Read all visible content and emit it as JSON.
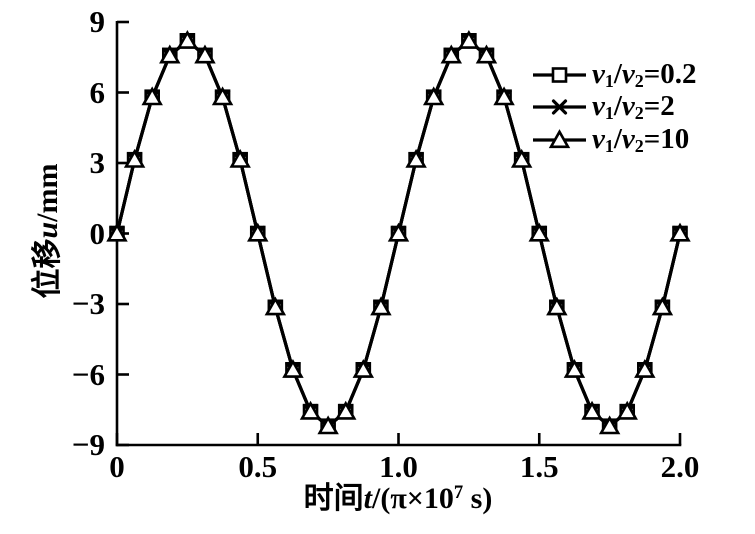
{
  "figure": {
    "background": "#ffffff",
    "ink": "#000000"
  },
  "axes": {
    "x": {
      "label_parts": [
        {
          "text": "时间"
        },
        {
          "text": "t",
          "italic": true
        },
        {
          "text": "/(π×10"
        },
        {
          "text": "7",
          "sup": true
        },
        {
          "text": " s)"
        }
      ],
      "tick_labels": [
        "0",
        "0.5",
        "1.0",
        "1.5",
        "2.0"
      ],
      "tick_values": [
        0,
        0.5,
        1.0,
        1.5,
        2.0
      ],
      "range": [
        0,
        2
      ]
    },
    "y": {
      "label_parts": [
        {
          "text": "位移"
        },
        {
          "text": "u",
          "italic": true
        },
        {
          "text": "/mm"
        }
      ],
      "tick_labels": [
        "9",
        "6",
        "3",
        "0",
        "−3",
        "−6",
        "−9"
      ],
      "tick_values": [
        9,
        6,
        3,
        0,
        -3,
        -6,
        -9
      ],
      "range": [
        -9,
        9
      ]
    }
  },
  "legend": {
    "position": "upper-right",
    "entries": [
      {
        "marker": "square",
        "label_parts": [
          {
            "text": "v",
            "italic": true
          },
          {
            "text": "1",
            "sub": true
          },
          {
            "text": "/"
          },
          {
            "text": "v",
            "italic": true
          },
          {
            "text": "2",
            "sub": true
          },
          {
            "text": "=0.2"
          }
        ]
      },
      {
        "marker": "x-cross",
        "label_parts": [
          {
            "text": "v",
            "italic": true
          },
          {
            "text": "1",
            "sub": true
          },
          {
            "text": "/"
          },
          {
            "text": "v",
            "italic": true
          },
          {
            "text": "2",
            "sub": true
          },
          {
            "text": "=2"
          }
        ]
      },
      {
        "marker": "triangle",
        "label_parts": [
          {
            "text": "v",
            "italic": true
          },
          {
            "text": "1",
            "sub": true
          },
          {
            "text": "/"
          },
          {
            "text": "v",
            "italic": true
          },
          {
            "text": "2",
            "sub": true
          },
          {
            "text": "=10"
          }
        ]
      }
    ]
  },
  "chart_data": {
    "type": "line",
    "title": "",
    "xlabel": "时间t/(π×10^7 s)",
    "ylabel": "位移u/mm",
    "xlim": [
      0,
      2
    ],
    "ylim": [
      -9,
      9
    ],
    "x_ticks": [
      0,
      0.5,
      1.0,
      1.5,
      2.0
    ],
    "y_ticks": [
      9,
      6,
      3,
      0,
      -3,
      -6,
      -9
    ],
    "grid": false,
    "legend_position": "upper right",
    "x": [
      0,
      0.0625,
      0.125,
      0.1875,
      0.25,
      0.3125,
      0.375,
      0.4375,
      0.5,
      0.5625,
      0.625,
      0.6875,
      0.75,
      0.8125,
      0.875,
      0.9375,
      1,
      1.0625,
      1.125,
      1.1875,
      1.25,
      1.3125,
      1.375,
      1.4375,
      1.5,
      1.5625,
      1.625,
      1.6875,
      1.75,
      1.8125,
      1.875,
      1.9375,
      2
    ],
    "series": [
      {
        "name": "v1/v2=0.2",
        "marker": "square",
        "values": [
          0,
          3.14,
          5.8,
          7.58,
          8.2,
          7.58,
          5.8,
          3.14,
          0,
          -3.14,
          -5.8,
          -7.58,
          -8.2,
          -7.58,
          -5.8,
          -3.14,
          0,
          3.14,
          5.8,
          7.58,
          8.2,
          7.58,
          5.8,
          3.14,
          0,
          -3.14,
          -5.8,
          -7.58,
          -8.2,
          -7.58,
          -5.8,
          -3.14,
          0
        ]
      },
      {
        "name": "v1/v2=2",
        "marker": "x",
        "values": [
          0,
          3.14,
          5.8,
          7.58,
          8.2,
          7.58,
          5.8,
          3.14,
          0,
          -3.14,
          -5.8,
          -7.58,
          -8.2,
          -7.58,
          -5.8,
          -3.14,
          0,
          3.14,
          5.8,
          7.58,
          8.2,
          7.58,
          5.8,
          3.14,
          0,
          -3.14,
          -5.8,
          -7.58,
          -8.2,
          -7.58,
          -5.8,
          -3.14,
          0
        ]
      },
      {
        "name": "v1/v2=10",
        "marker": "triangle",
        "values": [
          0,
          3.14,
          5.8,
          7.58,
          8.2,
          7.58,
          5.8,
          3.14,
          0,
          -3.14,
          -5.8,
          -7.58,
          -8.2,
          -7.58,
          -5.8,
          -3.14,
          0,
          3.14,
          5.8,
          7.58,
          8.2,
          7.58,
          5.8,
          3.14,
          0,
          -3.14,
          -5.8,
          -7.58,
          -8.2,
          -7.58,
          -5.8,
          -3.14,
          0
        ]
      }
    ]
  }
}
